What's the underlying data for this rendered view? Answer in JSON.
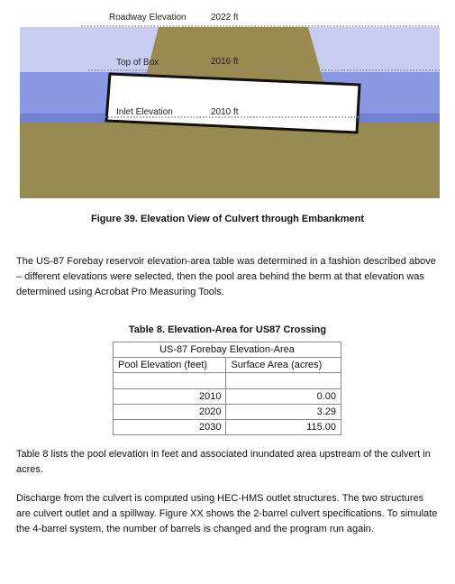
{
  "figure": {
    "labels": {
      "roadway_label": "Roadway Elevation",
      "roadway_value": "2022 ft",
      "top_box_label": "Top of Box",
      "top_box_value": "2016 ft",
      "inlet_label": "Inlet Elevation",
      "inlet_value": "2010 ft"
    },
    "caption": "Figure 39.  Elevation View of Culvert through Embankment",
    "colors": {
      "sky_light": "#c6cdf0",
      "water_mid": "#8a98e4",
      "water_dark": "#6f7fd8",
      "embankment": "#9b8a50",
      "ground": "#978b54",
      "culvert_box": "#ffffff"
    }
  },
  "paragraph1": "The US-87 Forebay reservoir elevation-area table was determined in a fashion described above – different elevations were selected, then the pool area behind the berm at that elevation was determined using Acrobat Pro Measuring Tools.",
  "table": {
    "title": "Table 8.  Elevation-Area for US87 Crossing",
    "group_header": "US-87 Forebay Elevation-Area",
    "col1": "Pool Elevation (feet)",
    "col2": "Surface Area (acres)",
    "rows": [
      {
        "elev": "2010",
        "area": "0.00"
      },
      {
        "elev": "2020",
        "area": "3.29"
      },
      {
        "elev": "2030",
        "area": "115.00"
      }
    ]
  },
  "paragraph2": "Table 8 lists the pool elevation in feet and associated inundated area upstream of the culvert in acres.",
  "paragraph3": "Discharge from the culvert is computed using HEC-HMS outlet structures.  The two structures are culvert outlet and a spillway.  Figure XX shows the 2-barrel culvert specifications.  To simulate the 4-barrel system, the number of barrels is changed and the program run again."
}
